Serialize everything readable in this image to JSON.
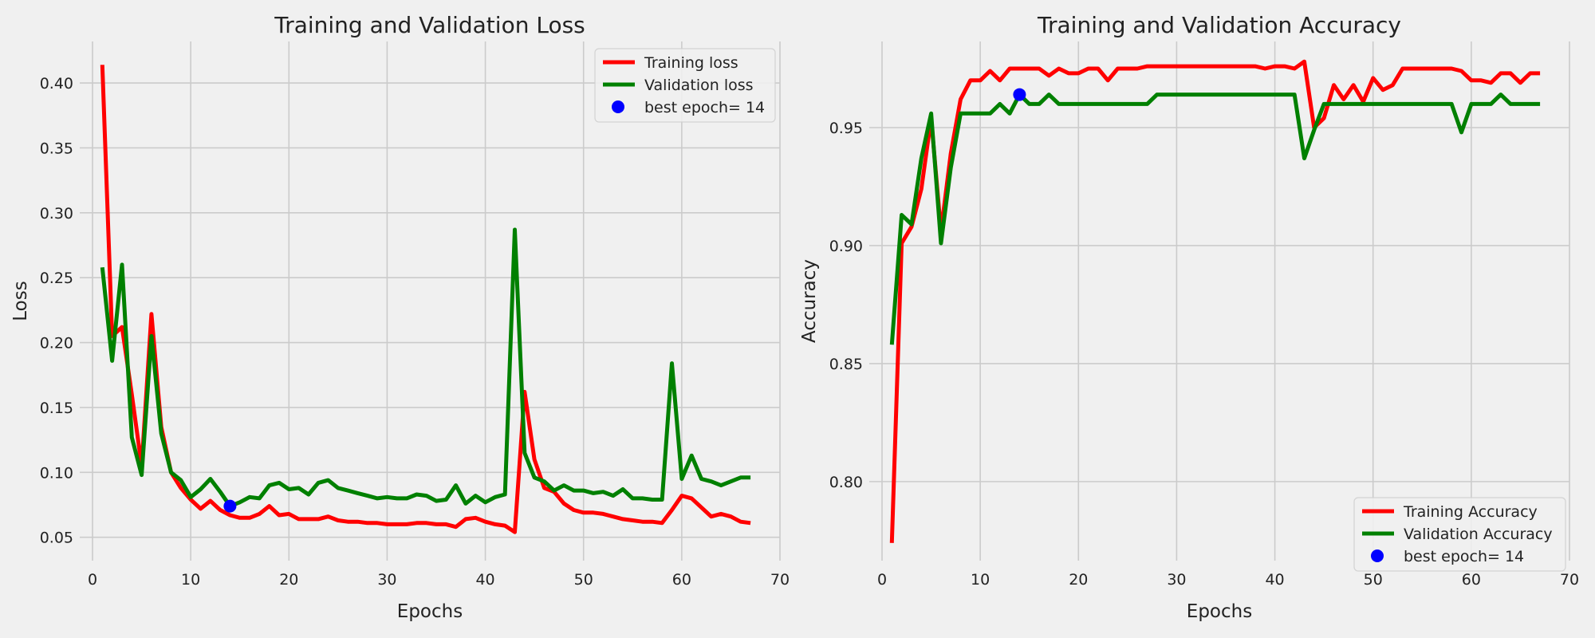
{
  "figure": {
    "background": "#f0f0f0",
    "grid_color": "#cbcbcb"
  },
  "chart_data": [
    {
      "id": "loss",
      "type": "line",
      "title": "Training and Validation Loss",
      "xlabel": "Epochs",
      "ylabel": "Loss",
      "xlim": [
        -1.3,
        70
      ],
      "ylim": [
        0.032,
        0.432
      ],
      "xticks": [
        0,
        10,
        20,
        30,
        40,
        50,
        60,
        70
      ],
      "yticks": [
        0.05,
        0.1,
        0.15,
        0.2,
        0.25,
        0.3,
        0.35,
        0.4
      ],
      "ytick_labels": [
        "0.05",
        "0.10",
        "0.15",
        "0.20",
        "0.25",
        "0.30",
        "0.35",
        "0.40"
      ],
      "grid": true,
      "legend_position": "top-right",
      "series": [
        {
          "name": "Training loss",
          "color": "#ff0000",
          "x": [
            1,
            2,
            3,
            4,
            5,
            6,
            7,
            8,
            9,
            10,
            11,
            12,
            13,
            14,
            15,
            16,
            17,
            18,
            19,
            20,
            21,
            22,
            23,
            24,
            25,
            26,
            27,
            28,
            29,
            30,
            31,
            32,
            33,
            34,
            35,
            36,
            37,
            38,
            39,
            40,
            41,
            42,
            43,
            44,
            45,
            46,
            47,
            48,
            49,
            50,
            51,
            52,
            53,
            54,
            55,
            56,
            57,
            58,
            59,
            60,
            61,
            62,
            63,
            64,
            65,
            66,
            67
          ],
          "y": [
            0.414,
            0.205,
            0.212,
            0.16,
            0.105,
            0.222,
            0.135,
            0.1,
            0.088,
            0.079,
            0.072,
            0.078,
            0.071,
            0.067,
            0.065,
            0.065,
            0.068,
            0.074,
            0.067,
            0.068,
            0.064,
            0.064,
            0.064,
            0.066,
            0.063,
            0.062,
            0.062,
            0.061,
            0.061,
            0.06,
            0.06,
            0.06,
            0.061,
            0.061,
            0.06,
            0.06,
            0.058,
            0.064,
            0.065,
            0.062,
            0.06,
            0.059,
            0.054,
            0.162,
            0.11,
            0.088,
            0.085,
            0.076,
            0.071,
            0.069,
            0.069,
            0.068,
            0.066,
            0.064,
            0.063,
            0.062,
            0.062,
            0.061,
            0.071,
            0.082,
            0.08,
            0.073,
            0.066,
            0.068,
            0.066,
            0.062,
            0.061
          ]
        },
        {
          "name": "Validation loss",
          "color": "#008000",
          "x": [
            1,
            2,
            3,
            4,
            5,
            6,
            7,
            8,
            9,
            10,
            11,
            12,
            13,
            14,
            15,
            16,
            17,
            18,
            19,
            20,
            21,
            22,
            23,
            24,
            25,
            26,
            27,
            28,
            29,
            30,
            31,
            32,
            33,
            34,
            35,
            36,
            37,
            38,
            39,
            40,
            41,
            42,
            43,
            44,
            45,
            46,
            47,
            48,
            49,
            50,
            51,
            52,
            53,
            54,
            55,
            56,
            57,
            58,
            59,
            60,
            61,
            62,
            63,
            64,
            65,
            66,
            67
          ],
          "y": [
            0.258,
            0.186,
            0.26,
            0.127,
            0.098,
            0.205,
            0.13,
            0.1,
            0.094,
            0.081,
            0.087,
            0.095,
            0.085,
            0.074,
            0.077,
            0.081,
            0.08,
            0.09,
            0.092,
            0.087,
            0.088,
            0.083,
            0.092,
            0.094,
            0.088,
            0.086,
            0.084,
            0.082,
            0.08,
            0.081,
            0.08,
            0.08,
            0.083,
            0.082,
            0.078,
            0.079,
            0.09,
            0.076,
            0.082,
            0.077,
            0.081,
            0.083,
            0.287,
            0.115,
            0.096,
            0.093,
            0.086,
            0.09,
            0.086,
            0.086,
            0.084,
            0.085,
            0.082,
            0.087,
            0.08,
            0.08,
            0.079,
            0.079,
            0.184,
            0.095,
            0.113,
            0.095,
            0.093,
            0.09,
            0.093,
            0.096,
            0.096
          ]
        }
      ],
      "best": {
        "label": "best epoch= 14",
        "x": 14,
        "y": 0.074,
        "color": "#0000ff"
      }
    },
    {
      "id": "accuracy",
      "type": "line",
      "title": "Training and Validation Accuracy",
      "xlabel": "Epochs",
      "ylabel": "Accuracy",
      "xlim": [
        -1.3,
        70
      ],
      "ylim": [
        0.7665,
        0.9865
      ],
      "xticks": [
        0,
        10,
        20,
        30,
        40,
        50,
        60,
        70
      ],
      "yticks": [
        0.8,
        0.85,
        0.9,
        0.95
      ],
      "ytick_labels": [
        "0.80",
        "0.85",
        "0.90",
        "0.95"
      ],
      "grid": true,
      "legend_position": "bottom-right",
      "series": [
        {
          "name": "Training Accuracy",
          "color": "#ff0000",
          "x": [
            1,
            2,
            3,
            4,
            5,
            6,
            7,
            8,
            9,
            10,
            11,
            12,
            13,
            14,
            15,
            16,
            17,
            18,
            19,
            20,
            21,
            22,
            23,
            24,
            25,
            26,
            27,
            28,
            29,
            30,
            31,
            32,
            33,
            34,
            35,
            36,
            37,
            38,
            39,
            40,
            41,
            42,
            43,
            44,
            45,
            46,
            47,
            48,
            49,
            50,
            51,
            52,
            53,
            54,
            55,
            56,
            57,
            58,
            59,
            60,
            61,
            62,
            63,
            64,
            65,
            66,
            67
          ],
          "y": [
            0.774,
            0.901,
            0.908,
            0.924,
            0.954,
            0.906,
            0.939,
            0.962,
            0.97,
            0.97,
            0.974,
            0.97,
            0.975,
            0.975,
            0.975,
            0.975,
            0.972,
            0.975,
            0.973,
            0.973,
            0.975,
            0.975,
            0.97,
            0.975,
            0.975,
            0.975,
            0.976,
            0.976,
            0.976,
            0.976,
            0.976,
            0.976,
            0.976,
            0.976,
            0.976,
            0.976,
            0.976,
            0.976,
            0.975,
            0.976,
            0.976,
            0.975,
            0.978,
            0.95,
            0.954,
            0.968,
            0.962,
            0.968,
            0.961,
            0.971,
            0.966,
            0.968,
            0.975,
            0.975,
            0.975,
            0.975,
            0.975,
            0.975,
            0.974,
            0.97,
            0.97,
            0.969,
            0.973,
            0.973,
            0.969,
            0.973,
            0.973
          ]
        },
        {
          "name": "Validation Accuracy",
          "color": "#008000",
          "x": [
            1,
            2,
            3,
            4,
            5,
            6,
            7,
            8,
            9,
            10,
            11,
            12,
            13,
            14,
            15,
            16,
            17,
            18,
            19,
            20,
            21,
            22,
            23,
            24,
            25,
            26,
            27,
            28,
            29,
            30,
            31,
            32,
            33,
            34,
            35,
            36,
            37,
            38,
            39,
            40,
            41,
            42,
            43,
            44,
            45,
            46,
            47,
            48,
            49,
            50,
            51,
            52,
            53,
            54,
            55,
            56,
            57,
            58,
            59,
            60,
            61,
            62,
            63,
            64,
            65,
            66,
            67
          ],
          "y": [
            0.858,
            0.913,
            0.909,
            0.937,
            0.956,
            0.901,
            0.933,
            0.956,
            0.956,
            0.956,
            0.956,
            0.96,
            0.956,
            0.964,
            0.96,
            0.96,
            0.964,
            0.96,
            0.96,
            0.96,
            0.96,
            0.96,
            0.96,
            0.96,
            0.96,
            0.96,
            0.96,
            0.964,
            0.964,
            0.964,
            0.964,
            0.964,
            0.964,
            0.964,
            0.964,
            0.964,
            0.964,
            0.964,
            0.964,
            0.964,
            0.964,
            0.964,
            0.937,
            0.949,
            0.96,
            0.96,
            0.96,
            0.96,
            0.96,
            0.96,
            0.96,
            0.96,
            0.96,
            0.96,
            0.96,
            0.96,
            0.96,
            0.96,
            0.948,
            0.96,
            0.96,
            0.96,
            0.964,
            0.96,
            0.96,
            0.96,
            0.96
          ]
        }
      ],
      "best": {
        "label": "best epoch= 14",
        "x": 14,
        "y": 0.964,
        "color": "#0000ff"
      }
    }
  ]
}
